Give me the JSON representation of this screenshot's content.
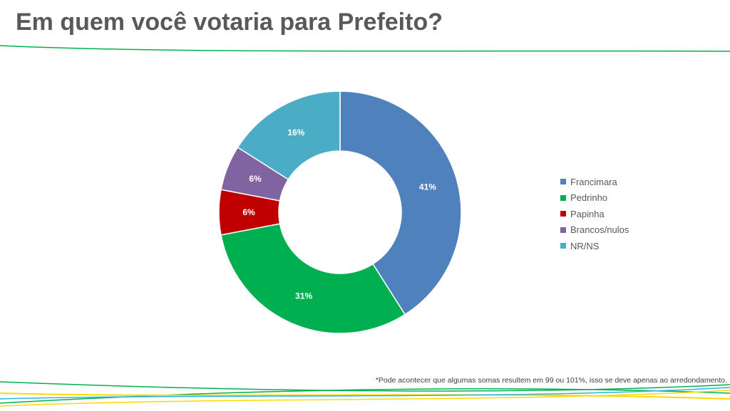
{
  "title": "Em quem você votaria para Prefeito?",
  "footnote": "*Pode acontecer que algumas somas resultem em 99 ou 101%, isso se deve apenas ao arredondamento.",
  "colors": {
    "title": "#595959",
    "line_green": "#00b050",
    "line_yellow": "#ffd800",
    "line_blue": "#29b6e0"
  },
  "chart_data": {
    "type": "pie",
    "donut": true,
    "unit": "%",
    "legend_position": "right",
    "categories": [
      "Francimara",
      "Pedrinho",
      "Papinha",
      "Brancos/nulos",
      "NR/NS"
    ],
    "values": [
      41,
      31,
      6,
      6,
      16
    ],
    "labels": [
      "41%",
      "31%",
      "6%",
      "6%",
      "16%"
    ],
    "colors": [
      "#4f81bd",
      "#00b050",
      "#c00000",
      "#8064a2",
      "#4bacc6"
    ]
  }
}
